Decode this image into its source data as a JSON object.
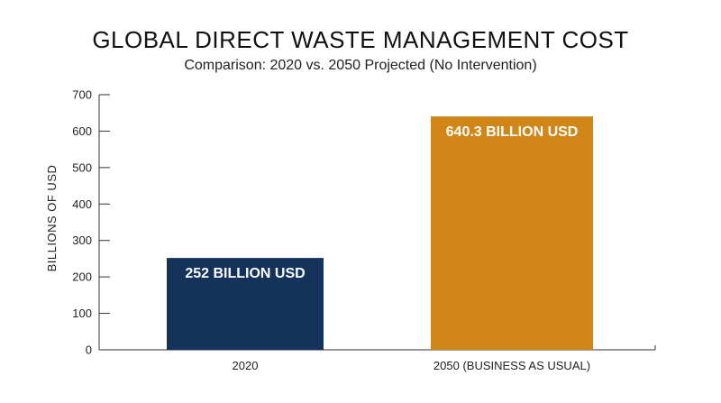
{
  "chart_data": {
    "type": "bar",
    "title": "GLOBAL DIRECT WASTE MANAGEMENT COST",
    "subtitle": "Comparison: 2020 vs. 2050 Projected (No Intervention)",
    "xlabel": "",
    "ylabel": "BILLIONS OF USD",
    "ylim": [
      0,
      700
    ],
    "yticks": [
      0,
      100,
      200,
      300,
      400,
      500,
      600,
      700
    ],
    "categories": [
      "2020",
      "2050 (BUSINESS AS USUAL)"
    ],
    "values": [
      252,
      640.3
    ],
    "data_labels": [
      "252 BILLION USD",
      "640.3 BILLION USD"
    ],
    "colors": [
      "#14325a",
      "#d08717"
    ],
    "grid": false,
    "legend": "none"
  }
}
